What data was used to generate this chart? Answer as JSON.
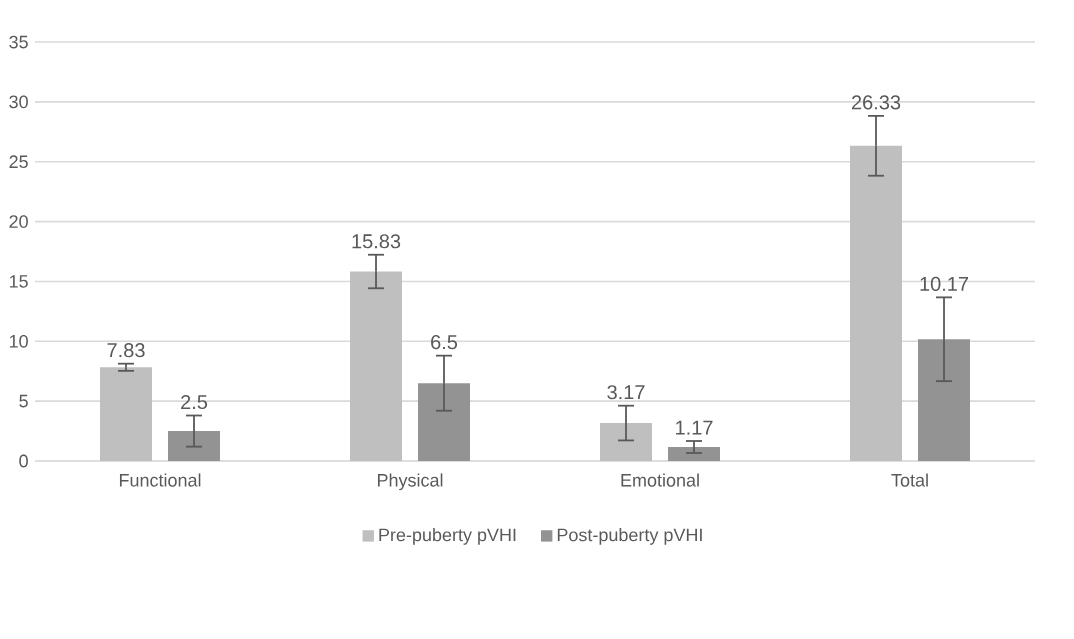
{
  "chart_data": {
    "type": "bar",
    "categories": [
      "Functional",
      "Physical",
      "Emotional",
      "Total"
    ],
    "series": [
      {
        "name": "Pre-puberty pVHI",
        "color": "#bfbfbf",
        "values": [
          7.83,
          15.83,
          3.17,
          26.33
        ],
        "errors": [
          0.3,
          1.4,
          1.45,
          2.5
        ]
      },
      {
        "name": "Post-puberty pVHI",
        "color": "#939393",
        "values": [
          2.5,
          6.5,
          1.17,
          10.17
        ],
        "errors": [
          1.3,
          2.3,
          0.5,
          3.5
        ]
      }
    ],
    "ylim": [
      0,
      35
    ],
    "yticks": [
      0,
      5,
      10,
      15,
      20,
      25,
      30,
      35
    ],
    "grid": "y",
    "legend": "bottom",
    "data_labels": true
  }
}
